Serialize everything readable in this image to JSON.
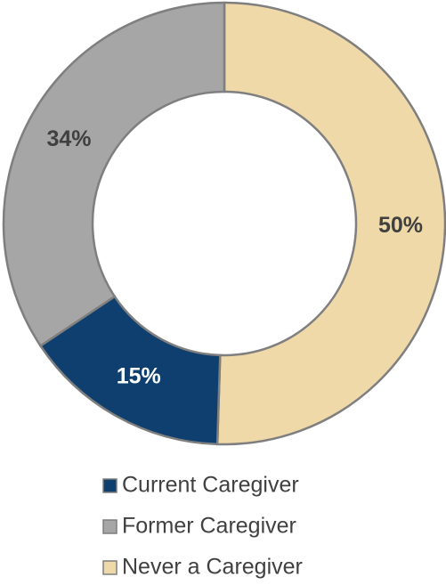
{
  "chart_data": {
    "type": "donut",
    "categories": [
      "Current Caregiver",
      "Former Caregiver",
      "Never a Caregiver"
    ],
    "values": [
      15,
      34,
      50
    ],
    "value_labels": [
      "15%",
      "34%",
      "50%"
    ],
    "colors": [
      "#0e3f6e",
      "#a6a6a6",
      "#efd9a9"
    ],
    "legend": "bottom"
  }
}
